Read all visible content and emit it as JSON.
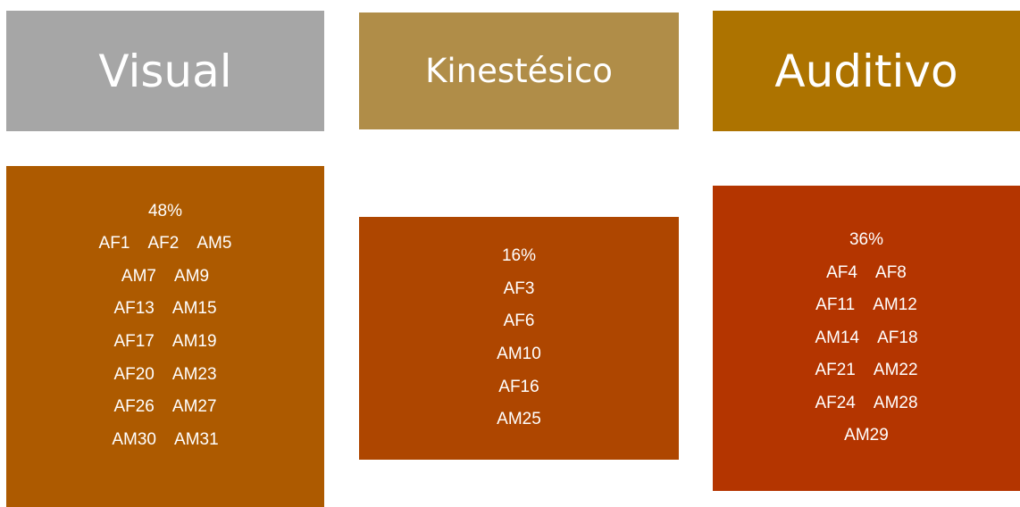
{
  "colors": {
    "visual_header": "#a6a6a6",
    "kinestesico_header": "#b08d48",
    "auditivo_header": "#ad7300",
    "visual_box": "#ad5a00",
    "kinestesico_box": "#ae4600",
    "auditivo_box": "#b43500"
  },
  "columns": [
    {
      "title": "Visual",
      "percent": "48%",
      "members": [
        "AF1    AF2    AM5",
        "AM7    AM9",
        "AF13    AM15",
        "AF17    AM19",
        "AF20    AM23",
        "AF26    AM27",
        "AM30    AM31"
      ]
    },
    {
      "title": "Kinestésico",
      "percent": "16%",
      "members": [
        "AF3",
        "AF6",
        "AM10",
        "AF16",
        "AM25"
      ]
    },
    {
      "title": "Auditivo",
      "percent": "36%",
      "members": [
        "AF4    AF8",
        "AF11    AM12",
        "AM14    AF18",
        "AF21    AM22",
        "AF24    AM28",
        "AM29"
      ]
    }
  ]
}
